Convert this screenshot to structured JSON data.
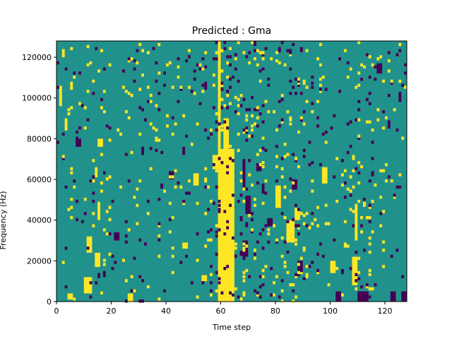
{
  "chart_data": {
    "type": "heatmap",
    "title": "Predicted : Gma",
    "xlabel": "Time step",
    "ylabel": "Frequency (Hz)",
    "xlim": [
      0,
      128
    ],
    "ylim": [
      0,
      128000
    ],
    "xticks": [
      0,
      20,
      40,
      60,
      80,
      100,
      120
    ],
    "yticks": [
      0,
      20000,
      40000,
      60000,
      80000,
      100000,
      120000
    ],
    "colormap": "viridis",
    "levels": [
      -1,
      0,
      1
    ],
    "colors": {
      "low": "#440154",
      "mid": "#21918c",
      "high": "#fde725"
    },
    "n_time": 128,
    "n_freq": 128,
    "grid": false,
    "cells": [
      {
        "t": [
          60,
          65
        ],
        "f": [
          0,
          75000
        ],
        "v": 1
      },
      {
        "t": [
          61,
          63
        ],
        "f": [
          75000,
          90000
        ],
        "v": 1
      },
      {
        "t": [
          59,
          60
        ],
        "f": [
          0,
          128000
        ],
        "v": 1
      },
      {
        "t": [
          10,
          13
        ],
        "f": [
          4000,
          12000
        ],
        "v": 1
      },
      {
        "t": [
          11,
          13
        ],
        "f": [
          24000,
          32000
        ],
        "v": 1
      },
      {
        "t": [
          14,
          16
        ],
        "f": [
          17000,
          24000
        ],
        "v": 1
      },
      {
        "t": [
          15,
          16
        ],
        "f": [
          40000,
          49000
        ],
        "v": 1
      },
      {
        "t": [
          14,
          15
        ],
        "f": [
          61000,
          66000
        ],
        "v": 1
      },
      {
        "t": [
          15,
          17
        ],
        "f": [
          76000,
          80000
        ],
        "v": 1
      },
      {
        "t": [
          4,
          6
        ],
        "f": [
          1000,
          4000
        ],
        "v": 1
      },
      {
        "t": [
          2,
          3
        ],
        "f": [
          120000,
          124000
        ],
        "v": 1
      },
      {
        "t": [
          5,
          6
        ],
        "f": [
          104000,
          108000
        ],
        "v": 1
      },
      {
        "t": [
          1,
          2
        ],
        "f": [
          96000,
          106000
        ],
        "v": 1
      },
      {
        "t": [
          26,
          28
        ],
        "f": [
          0,
          4000
        ],
        "v": 1
      },
      {
        "t": [
          46,
          48
        ],
        "f": [
          26000,
          29000
        ],
        "v": 1
      },
      {
        "t": [
          53,
          55
        ],
        "f": [
          10000,
          13000
        ],
        "v": 1
      },
      {
        "t": [
          50,
          52
        ],
        "f": [
          57000,
          63000
        ],
        "v": 1
      },
      {
        "t": [
          57,
          59
        ],
        "f": [
          65000,
          72000
        ],
        "v": 1
      },
      {
        "t": [
          80,
          82
        ],
        "f": [
          46000,
          57000
        ],
        "v": 1
      },
      {
        "t": [
          87,
          89
        ],
        "f": [
          40000,
          46000
        ],
        "v": 1
      },
      {
        "t": [
          84,
          87
        ],
        "f": [
          29000,
          40000
        ],
        "v": 1
      },
      {
        "t": [
          97,
          99
        ],
        "f": [
          58000,
          66000
        ],
        "v": 1
      },
      {
        "t": [
          108,
          110
        ],
        "f": [
          8000,
          22000
        ],
        "v": 1
      },
      {
        "t": [
          109,
          110
        ],
        "f": [
          30000,
          48000
        ],
        "v": 1
      },
      {
        "t": [
          110,
          114
        ],
        "f": [
          0,
          5000
        ],
        "v": -1
      },
      {
        "t": [
          122,
          124
        ],
        "f": [
          0,
          5000
        ],
        "v": -1
      },
      {
        "t": [
          126,
          128
        ],
        "f": [
          0,
          5000
        ],
        "v": -1
      },
      {
        "t": [
          102,
          104
        ],
        "f": [
          0,
          5000
        ],
        "v": -1
      },
      {
        "t": [
          68,
          69
        ],
        "f": [
          55000,
          70000
        ],
        "v": -1
      },
      {
        "t": [
          69,
          71
        ],
        "f": [
          43000,
          52000
        ],
        "v": -1
      },
      {
        "t": [
          68,
          70
        ],
        "f": [
          22000,
          30000
        ],
        "v": -1
      },
      {
        "t": [
          73,
          75
        ],
        "f": [
          64000,
          68000
        ],
        "v": -1
      },
      {
        "t": [
          75,
          76
        ],
        "f": [
          53000,
          58000
        ],
        "v": -1
      },
      {
        "t": [
          77,
          79
        ],
        "f": [
          37000,
          41000
        ],
        "v": -1
      },
      {
        "t": [
          86,
          88
        ],
        "f": [
          55000,
          60000
        ],
        "v": -1
      },
      {
        "t": [
          88,
          90
        ],
        "f": [
          15000,
          20000
        ],
        "v": -1
      },
      {
        "t": [
          31,
          32
        ],
        "f": [
          72000,
          76000
        ],
        "v": -1
      },
      {
        "t": [
          41,
          43
        ],
        "f": [
          60000,
          64000
        ],
        "v": -1
      },
      {
        "t": [
          46,
          47
        ],
        "f": [
          72000,
          76000
        ],
        "v": -1
      },
      {
        "t": [
          54,
          55
        ],
        "f": [
          104000,
          108000
        ],
        "v": -1
      },
      {
        "t": [
          17,
          18
        ],
        "f": [
          12000,
          15000
        ],
        "v": -1
      },
      {
        "t": [
          21,
          23
        ],
        "f": [
          30000,
          34000
        ],
        "v": -1
      },
      {
        "t": [
          117,
          119
        ],
        "f": [
          112000,
          117000
        ],
        "v": -1
      },
      {
        "t": [
          121,
          122
        ],
        "f": [
          85000,
          89000
        ],
        "v": -1
      },
      {
        "t": [
          125,
          126
        ],
        "f": [
          98000,
          103000
        ],
        "v": -1
      },
      {
        "t": [
          100,
          102
        ],
        "f": [
          14000,
          20000
        ],
        "v": 1
      },
      {
        "t": [
          3,
          4
        ],
        "f": [
          84000,
          90000
        ],
        "v": 1
      },
      {
        "t": [
          7,
          9
        ],
        "f": [
          76000,
          80000
        ],
        "v": -1
      }
    ]
  }
}
